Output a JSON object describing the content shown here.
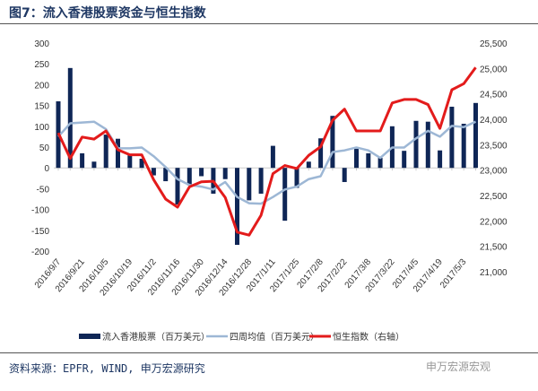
{
  "title": "图7：流入香港股票资金与恒生指数",
  "source": "资料来源：EPFR, WIND, 申万宏源研究",
  "watermark": "申万宏源宏观",
  "chart_data": {
    "type": "bar+line",
    "title": "图7：流入香港股票资金与恒生指数",
    "x_tick_labels": [
      "2016/9/7",
      "2016/9/21",
      "2016/10/5",
      "2016/10/19",
      "2016/11/2",
      "2016/11/16",
      "2016/11/30",
      "2016/12/14",
      "2016/12/28",
      "2017/1/11",
      "2017/1/25",
      "2017/2/8",
      "2017/2/22",
      "2017/3/8",
      "2017/3/22",
      "2017/4/5",
      "2017/4/19",
      "2017/5/3"
    ],
    "left_axis": {
      "ylim": [
        -200,
        300
      ],
      "ticks": [
        "300",
        "250",
        "200",
        "150",
        "100",
        "50",
        "0",
        "-50",
        "-100",
        "-150",
        "-200"
      ]
    },
    "right_axis": {
      "ylim": [
        21000,
        25500
      ],
      "ticks": [
        "25,500",
        "25,000",
        "24,500",
        "24,000",
        "23,500",
        "23,000",
        "22,500",
        "22,000",
        "21,500",
        "21,000"
      ]
    },
    "series": [
      {
        "name": "流入香港股票（百万美元）",
        "type": "bar",
        "axis": "left",
        "color": "#0f2656",
        "values": [
          160,
          240,
          35,
          15,
          80,
          70,
          30,
          22,
          -18,
          -32,
          -88,
          -42,
          -20,
          -62,
          -27,
          -185,
          -78,
          -62,
          53,
          -127,
          -48,
          15,
          71,
          125,
          -34,
          46,
          35,
          24,
          100,
          41,
          113,
          111,
          42,
          147,
          106,
          156
        ]
      },
      {
        "name": "四周均值（百万美元）",
        "type": "line",
        "axis": "left",
        "color": "#9db7d5",
        "values": [
          75,
          107,
          109,
          111,
          93,
          47,
          47,
          49,
          28,
          2,
          -27,
          -41,
          -45,
          -52,
          -34,
          -70,
          -85,
          -86,
          -70,
          -52,
          -45,
          -27,
          -20,
          38,
          42,
          49,
          42,
          24,
          49,
          49,
          71,
          89,
          75,
          101,
          98,
          111
        ]
      },
      {
        "name": "恒生指数（右轴）",
        "type": "line",
        "axis": "right",
        "color": "#e31b1b",
        "values": [
          23730,
          23230,
          23650,
          23610,
          23770,
          23400,
          23300,
          23300,
          22810,
          22430,
          22270,
          22670,
          22770,
          22780,
          22460,
          21780,
          21720,
          22110,
          22930,
          23090,
          23030,
          23290,
          23460,
          23980,
          24200,
          23770,
          23770,
          23770,
          24320,
          24390,
          24390,
          24290,
          23820,
          24580,
          24700,
          25020
        ]
      }
    ],
    "legend_position": "bottom",
    "grid": false
  }
}
